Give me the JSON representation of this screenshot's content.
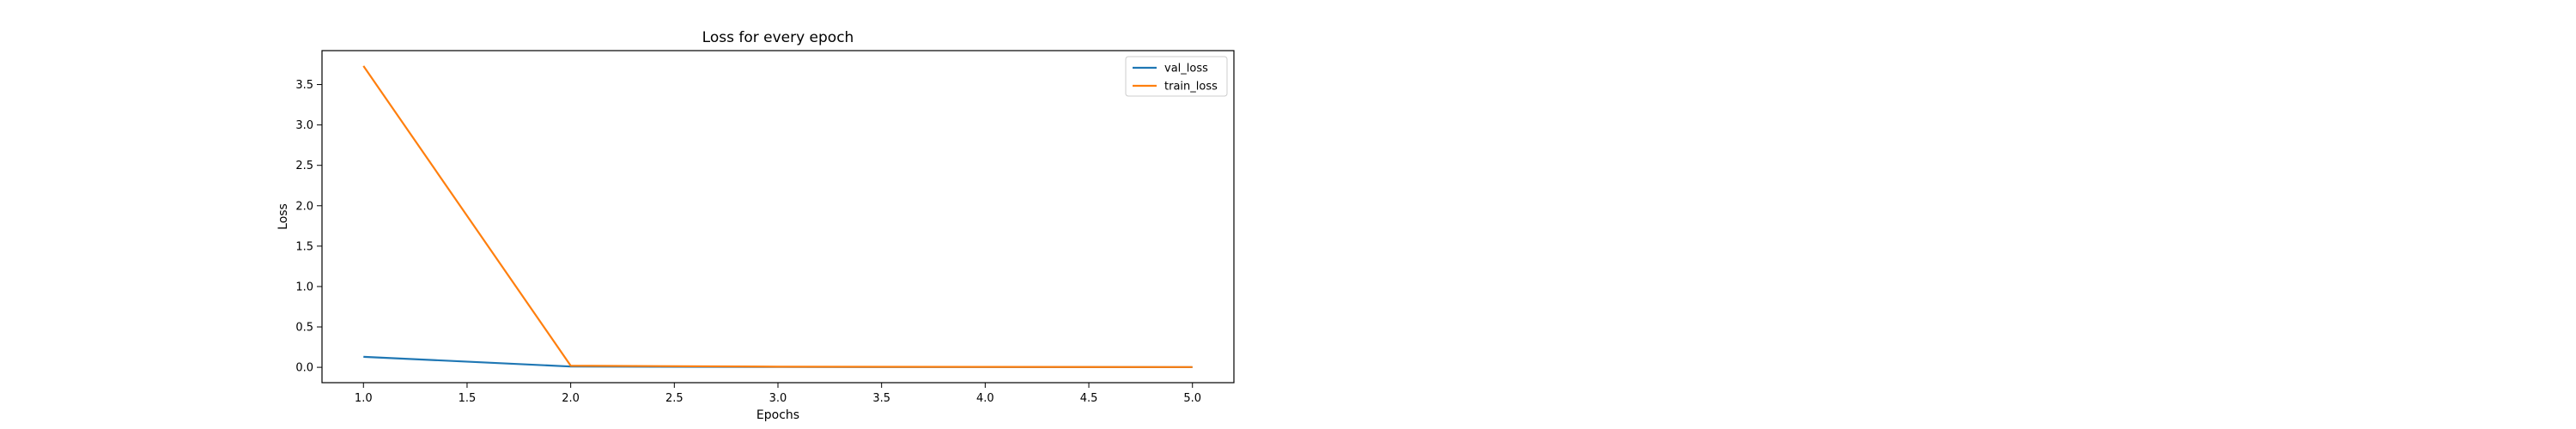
{
  "chart_data": {
    "type": "line",
    "title": "Loss for every epoch",
    "xlabel": "Epochs",
    "ylabel": "Loss",
    "x": [
      1,
      2,
      3,
      4,
      5
    ],
    "series": [
      {
        "name": "val_loss",
        "values": [
          0.13,
          0.01,
          0.005,
          0.003,
          0.002
        ],
        "color": "#1f77b4"
      },
      {
        "name": "train_loss",
        "values": [
          3.73,
          0.02,
          0.008,
          0.005,
          0.003
        ],
        "color": "#ff7f0e"
      }
    ],
    "xlim": [
      0.8,
      5.2
    ],
    "ylim": [
      -0.19,
      3.92
    ],
    "xticks": [
      1.0,
      1.5,
      2.0,
      2.5,
      3.0,
      3.5,
      4.0,
      4.5,
      5.0
    ],
    "xtick_labels": [
      "1.0",
      "1.5",
      "2.0",
      "2.5",
      "3.0",
      "3.5",
      "4.0",
      "4.5",
      "5.0"
    ],
    "yticks": [
      0.0,
      0.5,
      1.0,
      1.5,
      2.0,
      2.5,
      3.0,
      3.5
    ],
    "ytick_labels": [
      "0.0",
      "0.5",
      "1.0",
      "1.5",
      "2.0",
      "2.5",
      "3.0",
      "3.5"
    ],
    "grid": false,
    "legend": "top-right"
  }
}
